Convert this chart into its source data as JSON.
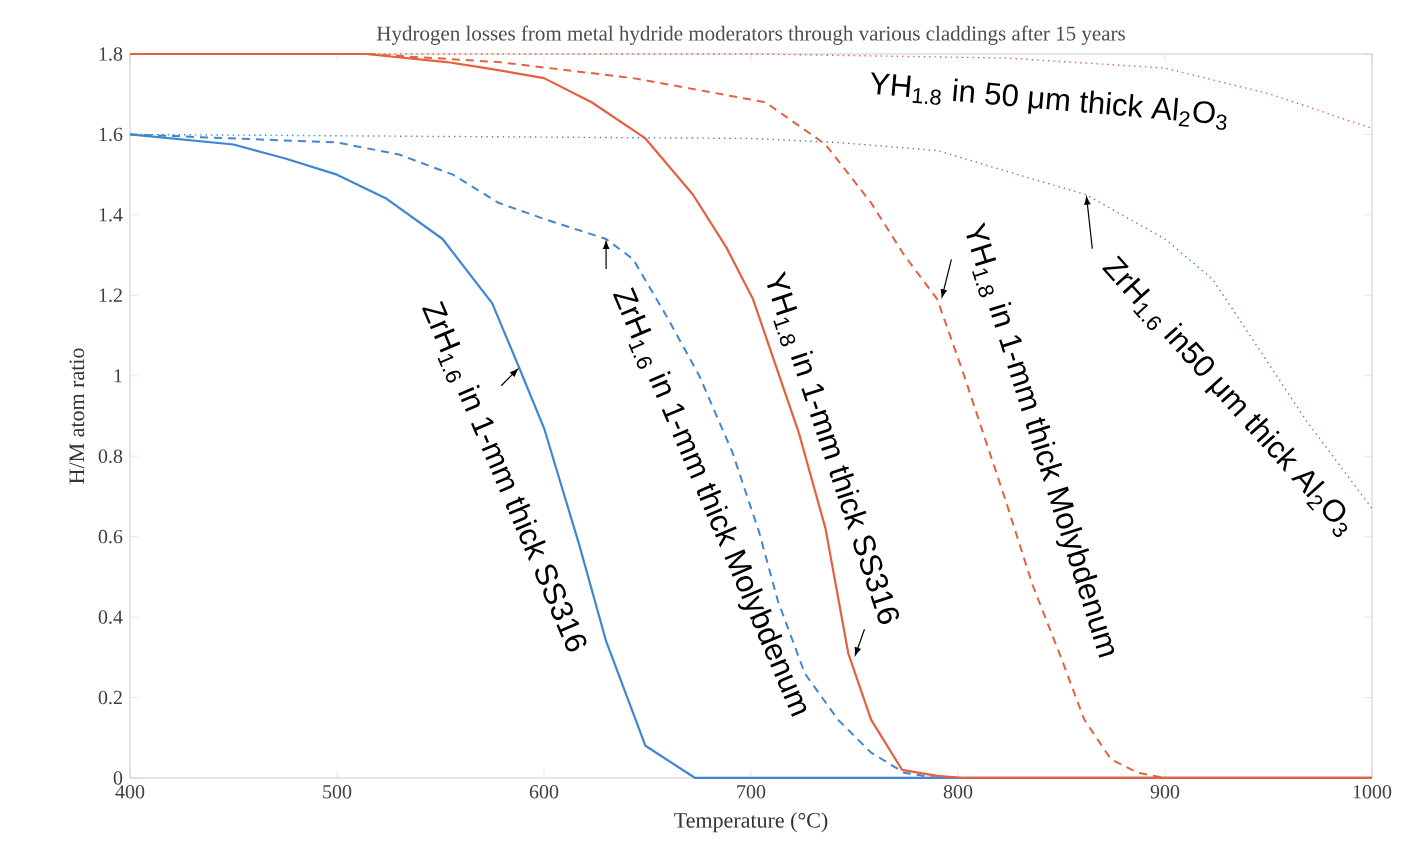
{
  "chart_data": {
    "type": "line",
    "title": "Hydrogen losses from metal hydride moderators through various claddings after 15 years",
    "xlabel": "Temperature (°C)",
    "ylabel": "H/M atom ratio",
    "xlim": [
      400,
      1000
    ],
    "ylim": [
      0,
      1.8
    ],
    "xticks": [
      400,
      500,
      600,
      700,
      800,
      900,
      1000
    ],
    "yticks": [
      0,
      0.2,
      0.4,
      0.6,
      0.8,
      1,
      1.2,
      1.4,
      1.6,
      1.8
    ],
    "grid": false,
    "marker": "none",
    "series": [
      {
        "color": "#3f86d4",
        "line_style": "solid",
        "x": [
          400,
          450,
          475,
          500,
          524,
          551,
          575,
          588,
          600,
          617,
          630,
          649,
          673,
          1000
        ],
        "values": [
          1.6,
          1.575,
          1.54,
          1.5,
          1.44,
          1.34,
          1.18,
          1.02,
          0.87,
          0.58,
          0.34,
          0.08,
          0,
          0
        ]
      },
      {
        "color": "#3f86d4",
        "line_style": "dashed",
        "x": [
          400,
          500,
          530,
          556,
          578,
          600,
          630,
          643,
          659,
          675,
          691,
          704,
          713,
          726,
          742,
          758,
          774,
          790,
          1000
        ],
        "values": [
          1.6,
          1.58,
          1.55,
          1.5,
          1.43,
          1.39,
          1.34,
          1.29,
          1.15,
          1.0,
          0.81,
          0.61,
          0.44,
          0.26,
          0.145,
          0.063,
          0.013,
          0,
          0
        ]
      },
      {
        "color": "#e5603f",
        "line_style": "solid",
        "x": [
          400,
          514,
          553,
          572,
          600,
          623,
          649,
          672,
          688,
          701,
          707,
          723,
          736,
          747,
          758,
          773,
          790,
          803,
          1000
        ],
        "values": [
          1.8,
          1.8,
          1.78,
          1.765,
          1.74,
          1.68,
          1.59,
          1.45,
          1.32,
          1.19,
          1.1,
          0.86,
          0.62,
          0.31,
          0.145,
          0.02,
          0.005,
          0,
          0
        ]
      },
      {
        "color": "#e5603f",
        "line_style": "dashed",
        "x": [
          400,
          514,
          578,
          643,
          707,
          736,
          758,
          774,
          790,
          803,
          812,
          823,
          836,
          849,
          861,
          874,
          887,
          900,
          1000
        ],
        "values": [
          1.8,
          1.8,
          1.78,
          1.74,
          1.68,
          1.575,
          1.43,
          1.3,
          1.19,
          1.0,
          0.86,
          0.69,
          0.48,
          0.31,
          0.145,
          0.046,
          0.013,
          0,
          0
        ]
      },
      {
        "color": "#e5603f",
        "line_style": "dotted",
        "x": [
          400,
          700,
          823,
          900,
          951,
          1000
        ],
        "values": [
          1.8,
          1.8,
          1.79,
          1.765,
          1.7,
          1.615
        ]
      },
      {
        "color": "#3f86d4",
        "line_style": "dotted",
        "x": [
          400,
          700,
          742,
          790,
          829,
          862,
          900,
          923,
          945,
          968,
          1000
        ],
        "values": [
          1.6,
          1.59,
          1.58,
          1.56,
          1.5,
          1.45,
          1.34,
          1.24,
          1.07,
          0.89,
          0.67
        ]
      }
    ],
    "annotations": [
      {
        "text": "ZrH$_{1.6}$ in 1-mm thick SS316",
        "x": 588,
        "y": 1.02
      },
      {
        "text": "ZrH$_{1.6}$ in 1-mm thick Molybdenum",
        "x": 630,
        "y": 1.34
      },
      {
        "text": "YH$_{1.8}$ in 1-mm thick SS316",
        "x": 750,
        "y": 0.3
      },
      {
        "text": "YH$_{1.8}$ in 1-mm thick Molybdenum",
        "x": 792,
        "y": 1.19
      },
      "YH$_{1.8}$ in 50 μm thick Al$_{2}$O$_{3}$",
      {
        "text": "ZrH$_{1.6}$ in50 μm thick Al$_{2}$O$_{3}$",
        "x": 862,
        "y": 1.45
      }
    ]
  }
}
